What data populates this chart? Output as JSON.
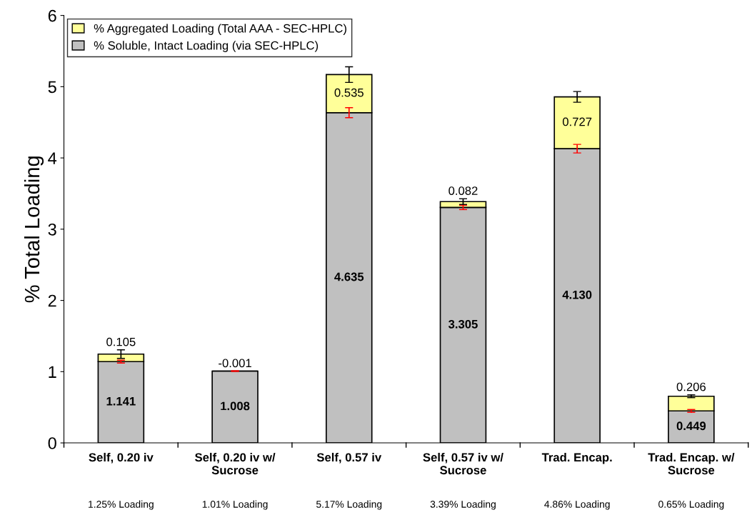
{
  "chart_data": {
    "type": "bar",
    "stacked": true,
    "ylabel": "% Total Loading",
    "categories": [
      "Self, 0.20 iv",
      "Self, 0.20 iv w/\nSucrose",
      "Self, 0.57 iv",
      "Self, 0.57 iv w/\nSucrose",
      "Trad. Encap.",
      "Trad. Encap. w/\nSucrose"
    ],
    "series": [
      {
        "name": "% Soluble, Intact Loading (via SEC-HPLC)",
        "color": "#c0c0c0",
        "values": [
          1.141,
          1.008,
          4.635,
          3.305,
          4.13,
          0.449
        ],
        "errors": [
          0.02,
          0.005,
          0.07,
          0.03,
          0.06,
          0.02
        ],
        "value_labels": [
          "1.141",
          "1.008",
          "4.635",
          "3.305",
          "4.130",
          "0.449"
        ]
      },
      {
        "name": "% Aggregated Loading (Total AAA - SEC-HPLC)",
        "color": "#ffff99",
        "values": [
          0.105,
          null,
          0.535,
          0.082,
          0.727,
          0.206
        ],
        "errors": [
          0.06,
          null,
          0.11,
          0.04,
          0.075,
          0.02
        ],
        "value_labels": [
          "0.105",
          "-0.001",
          "0.535",
          "0.082",
          "0.727",
          "0.206"
        ]
      }
    ],
    "annotations": [
      "1.25% Loading",
      "1.01% Loading",
      "5.17% Loading",
      "3.39% Loading",
      "4.86% Loading",
      "0.65% Loading"
    ],
    "ylim": [
      0,
      6
    ],
    "yticks": [
      0,
      1,
      2,
      3,
      4,
      5,
      6
    ],
    "grid": false,
    "legend": "top left"
  }
}
